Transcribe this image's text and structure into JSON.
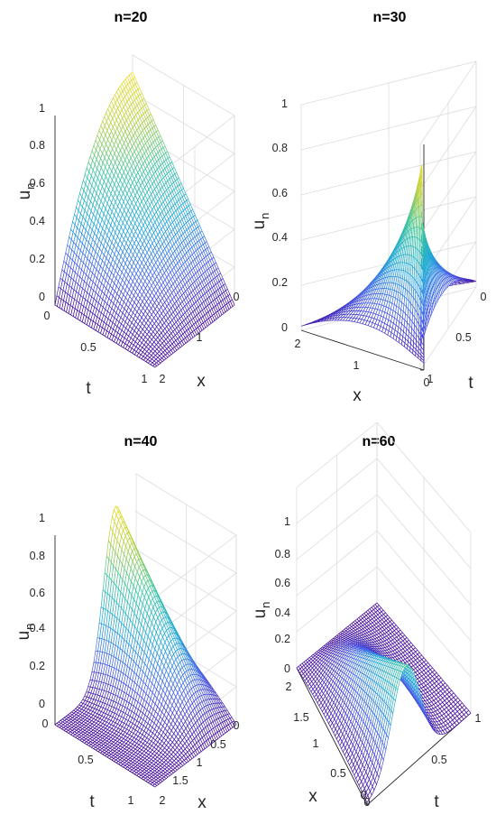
{
  "chart_data": [
    {
      "type": "surface",
      "title": "n=20",
      "z_label": "u",
      "z_label_subscript": "n",
      "x_label": "x",
      "t_label": "t",
      "x_ticks": [
        "0",
        "1",
        "2"
      ],
      "t_ticks": [
        "0",
        "0.5",
        "1"
      ],
      "z_ticks": [
        "0",
        "0.2",
        "0.4",
        "0.6",
        "0.8",
        "1"
      ],
      "x_range": [
        0,
        2
      ],
      "t_range": [
        0,
        1
      ],
      "z_range": [
        0,
        1
      ],
      "surface_peak": {
        "x": 0,
        "t": 1,
        "u": 0.91
      },
      "colormap": [
        "#440a9c",
        "#4a60e8",
        "#20a8d8",
        "#3cc4a0",
        "#bcd040",
        "#f8e020"
      ],
      "grid": true
    },
    {
      "type": "surface",
      "title": "n=30",
      "z_label": "u",
      "z_label_subscript": "n",
      "x_label": "x",
      "t_label": "t",
      "x_ticks": [
        "0",
        "1",
        "2"
      ],
      "t_ticks": [
        "0",
        "0.5",
        "1"
      ],
      "z_ticks": [
        "0",
        "0.2",
        "0.4",
        "0.6",
        "0.8",
        "1"
      ],
      "x_range": [
        0,
        2
      ],
      "t_range": [
        0,
        1
      ],
      "z_range": [
        0,
        1
      ],
      "surface_peak": {
        "x": 0.9,
        "t": 1,
        "u": 0.91
      },
      "colormap": [
        "#440a9c",
        "#4a60e8",
        "#20a8d8",
        "#3cc4a0",
        "#bcd040",
        "#f8e020"
      ],
      "grid": true
    },
    {
      "type": "surface",
      "title": "n=40",
      "z_label": "u",
      "z_label_subscript": "n",
      "x_label": "x",
      "t_label": "t",
      "x_ticks": [
        "0",
        "0.5",
        "1",
        "1.5",
        "2"
      ],
      "t_ticks": [
        "0",
        "0.5",
        "1"
      ],
      "z_ticks": [
        "0",
        "0.2",
        "0.4",
        "0.6",
        "0.8",
        "1"
      ],
      "x_range": [
        0,
        2
      ],
      "t_range": [
        0,
        1
      ],
      "z_range": [
        0,
        1
      ],
      "surface_peak": {
        "x": 0.5,
        "t": 1,
        "u": 0.91
      },
      "colormap": [
        "#440a9c",
        "#4a60e8",
        "#20a8d8",
        "#3cc4a0",
        "#bcd040",
        "#f8e020"
      ],
      "grid": true
    },
    {
      "type": "surface",
      "title": "n=60",
      "z_label": "u",
      "z_label_subscript": "n",
      "x_label": "x",
      "t_label": "t",
      "x_ticks": [
        "0",
        "0.5",
        "1",
        "1.5",
        "2"
      ],
      "t_ticks": [
        "0",
        "0.5",
        "1"
      ],
      "z_ticks": [
        "0",
        "0.2",
        "0.4",
        "0.6",
        "0.8",
        "1"
      ],
      "x_range": [
        0,
        2
      ],
      "t_range": [
        0,
        1
      ],
      "z_range": [
        0,
        1
      ],
      "surface_peak": {
        "x": 1.25,
        "t": 1,
        "u": 0.58
      },
      "colormap": [
        "#440a9c",
        "#4a60e8",
        "#20a8d8",
        "#3cc4a0",
        "#bcd040",
        "#f8e020"
      ],
      "grid": true
    }
  ]
}
